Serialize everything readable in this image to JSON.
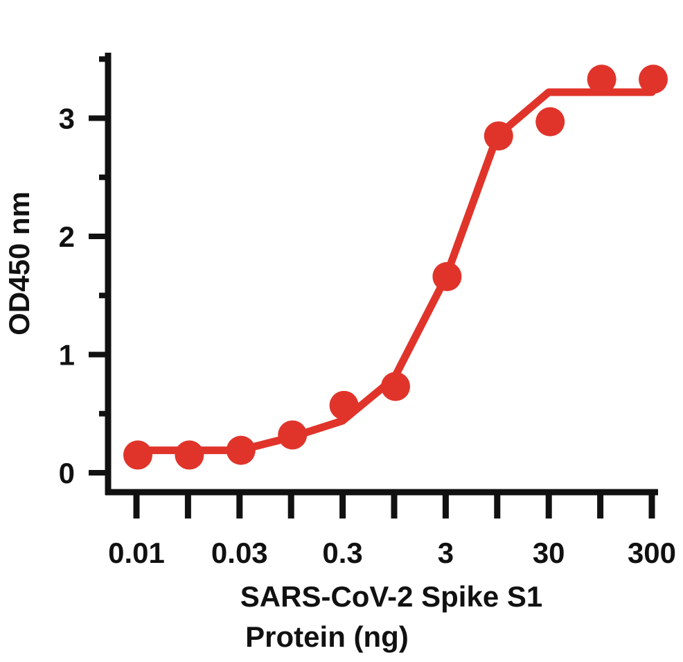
{
  "chart_data": {
    "type": "scatter",
    "title": "",
    "xlabel": "SARS-CoV-2 Spike S1 Protein (ng)",
    "xlabel_lines": [
      "SARS-CoV-2 Spike S1",
      "Protein (ng)"
    ],
    "ylabel": "OD450 nm",
    "x_tick_labels": [
      "0.01",
      "",
      "0.03",
      "",
      "0.3",
      "",
      "3",
      "",
      "30",
      "",
      "300"
    ],
    "y_ticks": [
      0,
      1,
      2,
      3
    ],
    "y_tick_labels": [
      "0",
      "1",
      "2",
      "3"
    ],
    "ylim": [
      -0.18,
      3.55
    ],
    "grid": false,
    "series": [
      {
        "kind": "points",
        "values": [
          0.15,
          0.15,
          0.19,
          0.32,
          0.57,
          0.73,
          1.66,
          2.85,
          2.97,
          3.33,
          3.33
        ]
      },
      {
        "kind": "fit-curve",
        "values": [
          0.19,
          0.19,
          0.19,
          0.3,
          0.44,
          0.8,
          1.65,
          2.85,
          3.22,
          3.22,
          3.22
        ]
      }
    ],
    "color": "#e0342b"
  }
}
